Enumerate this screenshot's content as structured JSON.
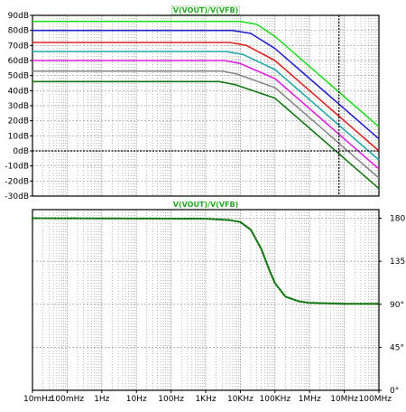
{
  "chart_data": [
    {
      "type": "line",
      "title": "V(VOUT)/V(VFB)",
      "x_scale": "log",
      "x_range": [
        0.01,
        100000000
      ],
      "ylim": [
        -30,
        90
      ],
      "y_ticks": [
        -30,
        -20,
        -10,
        0,
        10,
        20,
        30,
        40,
        50,
        60,
        70,
        80,
        90
      ],
      "y_tick_labels": [
        "-30dB",
        "-20dB",
        "-10dB",
        "0dB",
        "10dB",
        "20dB",
        "30dB",
        "40dB",
        "50dB",
        "60dB",
        "70dB",
        "80dB",
        "90dB"
      ],
      "grid": true,
      "cursor_x": 7000000,
      "cursor_y": 0,
      "series": [
        {
          "color": "#22dd22",
          "values": [
            [
              0.01,
              86
            ],
            [
              10000,
              86
            ],
            [
              30000,
              84
            ],
            [
              100000,
              76
            ],
            [
              1000000,
              56
            ],
            [
              10000000,
              36
            ],
            [
              100000000,
              16
            ]
          ]
        },
        {
          "color": "#2222cc",
          "values": [
            [
              0.01,
              80
            ],
            [
              6000,
              80
            ],
            [
              20000,
              78
            ],
            [
              100000,
              68
            ],
            [
              1000000,
              48
            ],
            [
              10000000,
              28
            ],
            [
              100000000,
              8
            ]
          ]
        },
        {
          "color": "#dd2222",
          "values": [
            [
              0.01,
              72
            ],
            [
              5000,
              72
            ],
            [
              15000,
              70
            ],
            [
              100000,
              60
            ],
            [
              1000000,
              40
            ],
            [
              10000000,
              20
            ],
            [
              100000000,
              0
            ]
          ]
        },
        {
          "color": "#22aaaa",
          "values": [
            [
              0.01,
              66
            ],
            [
              4000,
              66
            ],
            [
              12000,
              64
            ],
            [
              100000,
              54
            ],
            [
              1000000,
              34
            ],
            [
              10000000,
              14
            ],
            [
              100000000,
              -6
            ]
          ]
        },
        {
          "color": "#dd22dd",
          "values": [
            [
              0.01,
              60
            ],
            [
              3500,
              60
            ],
            [
              10000,
              58
            ],
            [
              100000,
              48
            ],
            [
              1000000,
              28
            ],
            [
              10000000,
              8
            ],
            [
              100000000,
              -12
            ]
          ]
        },
        {
          "color": "#888888",
          "values": [
            [
              0.01,
              53
            ],
            [
              3000,
              53
            ],
            [
              8000,
              51
            ],
            [
              100000,
              42
            ],
            [
              1000000,
              22
            ],
            [
              10000000,
              2
            ],
            [
              100000000,
              -18
            ]
          ]
        },
        {
          "color": "#117711",
          "values": [
            [
              0.01,
              46
            ],
            [
              2500,
              46
            ],
            [
              7000,
              44
            ],
            [
              100000,
              35
            ],
            [
              1000000,
              15
            ],
            [
              10000000,
              -5
            ],
            [
              100000000,
              -25
            ]
          ]
        }
      ]
    },
    {
      "type": "line",
      "title": "V(VOUT)/V(VFB)",
      "x_scale": "log",
      "x_range": [
        0.01,
        100000000
      ],
      "ylim": [
        0,
        189
      ],
      "y_ticks": [
        0,
        45,
        90,
        135,
        180
      ],
      "y_tick_labels": [
        "0°",
        "45°",
        "90°",
        "135°",
        "180°"
      ],
      "x_ticks": [
        0.01,
        0.1,
        1,
        10,
        100,
        1000,
        10000,
        100000,
        1000000,
        10000000,
        100000000
      ],
      "x_tick_labels": [
        "10mHz",
        "100mHz",
        "1Hz",
        "10Hz",
        "100Hz",
        "1KHz",
        "10KHz",
        "100KHz",
        "1MHz",
        "10MHz",
        "100MHz"
      ],
      "grid": true,
      "series": [
        {
          "color": "#117711",
          "style": "dotted",
          "values": [
            [
              0.01,
              180
            ],
            [
              1000,
              179.5
            ],
            [
              5000,
              178
            ],
            [
              10000,
              176
            ],
            [
              20000,
              168
            ],
            [
              40000,
              148
            ],
            [
              70000,
              125
            ],
            [
              100000,
              112
            ],
            [
              200000,
              98
            ],
            [
              500000,
              93
            ],
            [
              1000000,
              91.5
            ],
            [
              10000000,
              90.5
            ],
            [
              100000000,
              90.5
            ]
          ]
        }
      ]
    }
  ]
}
